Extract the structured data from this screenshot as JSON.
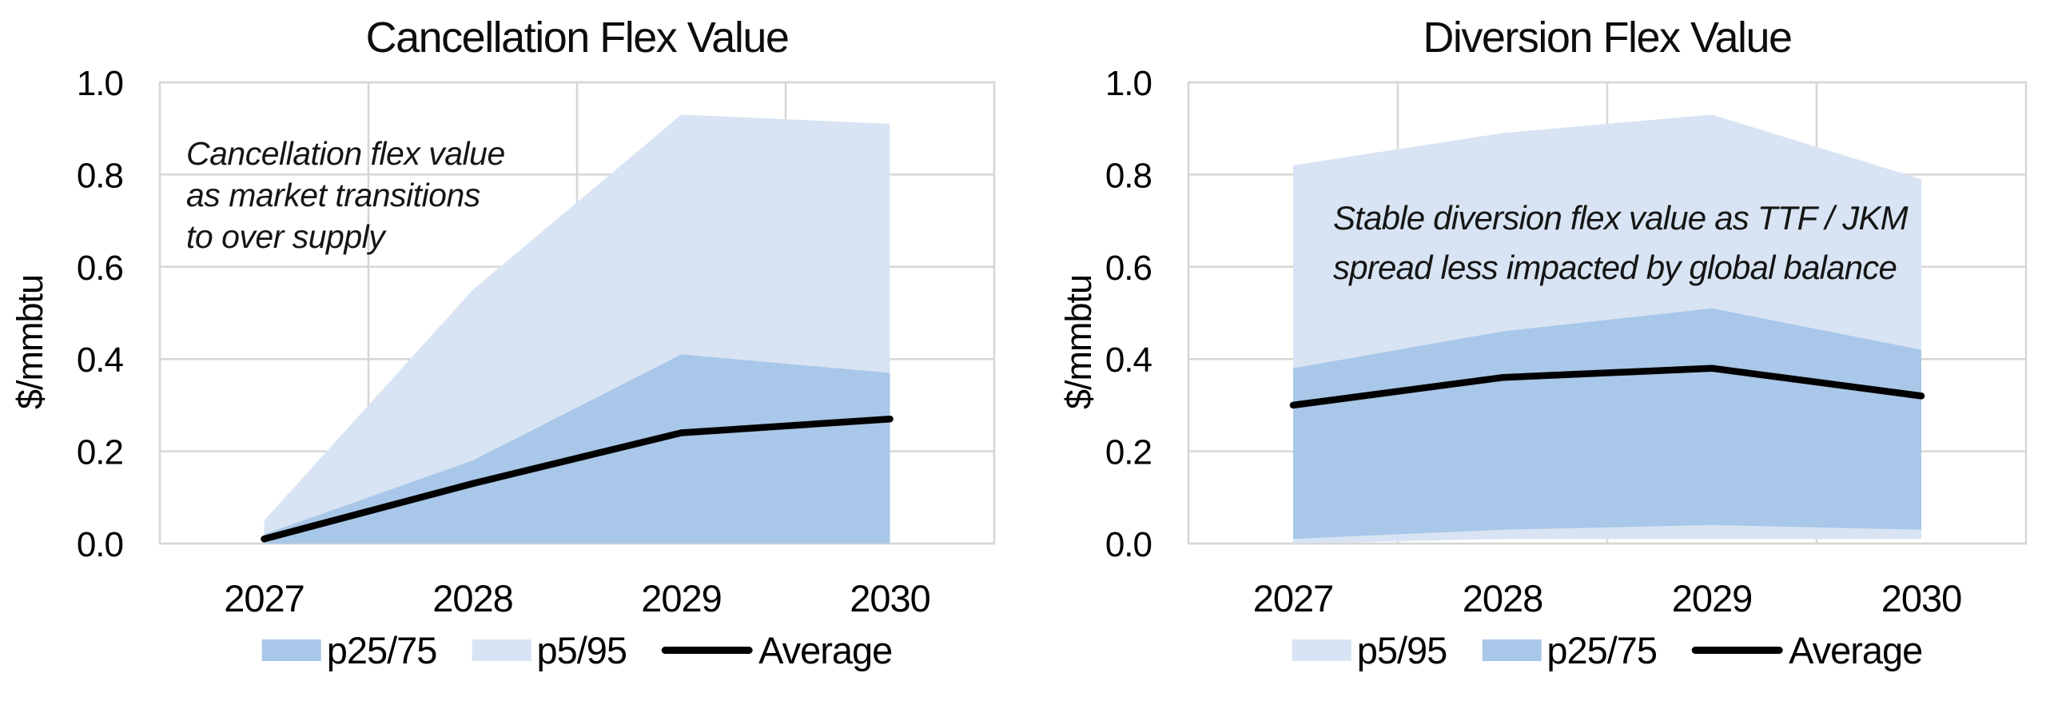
{
  "colors": {
    "band_light": "#d8e4f3",
    "band_medium": "#a9c7e8",
    "average": "#000000",
    "grid": "#d6d6d6",
    "background": "#ffffff"
  },
  "chart_data": [
    {
      "type": "area",
      "title": "Cancellation Flex Value",
      "ylabel": "$/mmbtu",
      "annotation_lines": [
        "Cancellation flex value",
        "as market transitions",
        "to over supply"
      ],
      "categories": [
        "2027",
        "2028",
        "2029",
        "2030"
      ],
      "yticks": [
        "0.0",
        "0.2",
        "0.4",
        "0.6",
        "0.8",
        "1.0"
      ],
      "ylim": [
        0,
        1
      ],
      "grid": true,
      "legend_position": "bottom",
      "series": {
        "p5": [
          0.0,
          0.0,
          0.0,
          0.0
        ],
        "p25": [
          0.0,
          0.0,
          0.0,
          0.0
        ],
        "p75": [
          0.02,
          0.18,
          0.41,
          0.37
        ],
        "p95": [
          0.05,
          0.55,
          0.93,
          0.91
        ],
        "average": [
          0.01,
          0.13,
          0.24,
          0.27
        ]
      },
      "legend": [
        {
          "swatch": "band-medium",
          "label": "p25/75"
        },
        {
          "swatch": "band-light",
          "label": "p5/95"
        },
        {
          "swatch": "line",
          "label": "Average"
        }
      ]
    },
    {
      "type": "area",
      "title": "Diversion Flex Value",
      "ylabel": "$/mmbtu",
      "annotation_lines": [
        "Stable diversion flex value as TTF / JKM",
        "spread less impacted by global balance"
      ],
      "categories": [
        "2027",
        "2028",
        "2029",
        "2030"
      ],
      "yticks": [
        "0.0",
        "0.2",
        "0.4",
        "0.6",
        "0.8",
        "1.0"
      ],
      "ylim": [
        0,
        1
      ],
      "grid": true,
      "legend_position": "bottom",
      "series": {
        "p5": [
          0.0,
          0.01,
          0.01,
          0.01
        ],
        "p25": [
          0.01,
          0.03,
          0.04,
          0.03
        ],
        "p75": [
          0.38,
          0.46,
          0.51,
          0.42
        ],
        "p95": [
          0.82,
          0.89,
          0.93,
          0.79
        ],
        "average": [
          0.3,
          0.36,
          0.38,
          0.32
        ]
      },
      "legend": [
        {
          "swatch": "band-light",
          "label": "p5/95"
        },
        {
          "swatch": "band-medium",
          "label": "p25/75"
        },
        {
          "swatch": "line",
          "label": "Average"
        }
      ]
    }
  ]
}
